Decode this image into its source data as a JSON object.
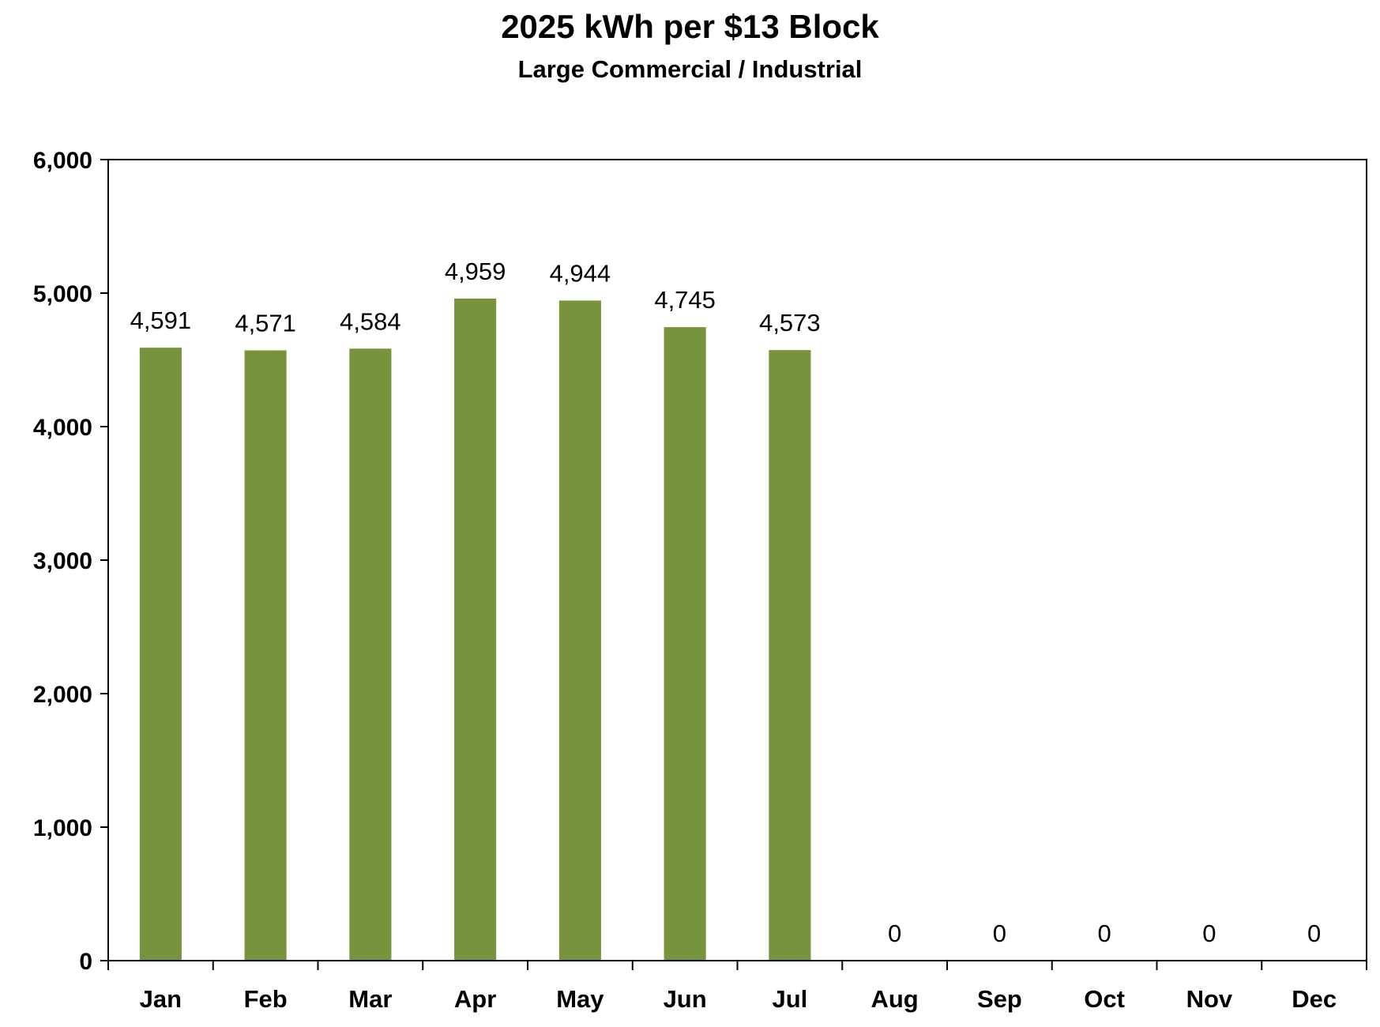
{
  "chart_data": {
    "type": "bar",
    "title": "2025 kWh per $13 Block",
    "subtitle": "Large Commercial / Industrial",
    "categories": [
      "Jan",
      "Feb",
      "Mar",
      "Apr",
      "May",
      "Jun",
      "Jul",
      "Aug",
      "Sep",
      "Oct",
      "Nov",
      "Dec"
    ],
    "values": [
      4591,
      4571,
      4584,
      4959,
      4944,
      4745,
      4573,
      0,
      0,
      0,
      0,
      0
    ],
    "data_labels": [
      "4,591",
      "4,571",
      "4,584",
      "4,959",
      "4,944",
      "4,745",
      "4,573",
      "0",
      "0",
      "0",
      "0",
      "0"
    ],
    "ylim": [
      0,
      6000
    ],
    "yticks": [
      0,
      1000,
      2000,
      3000,
      4000,
      5000,
      6000
    ],
    "ytick_labels": [
      "0",
      "1,000",
      "2,000",
      "3,000",
      "4,000",
      "5,000",
      "6,000"
    ],
    "xlabel": "",
    "ylabel": "",
    "grid": false,
    "legend": "none",
    "bar_color": "#77933C"
  }
}
